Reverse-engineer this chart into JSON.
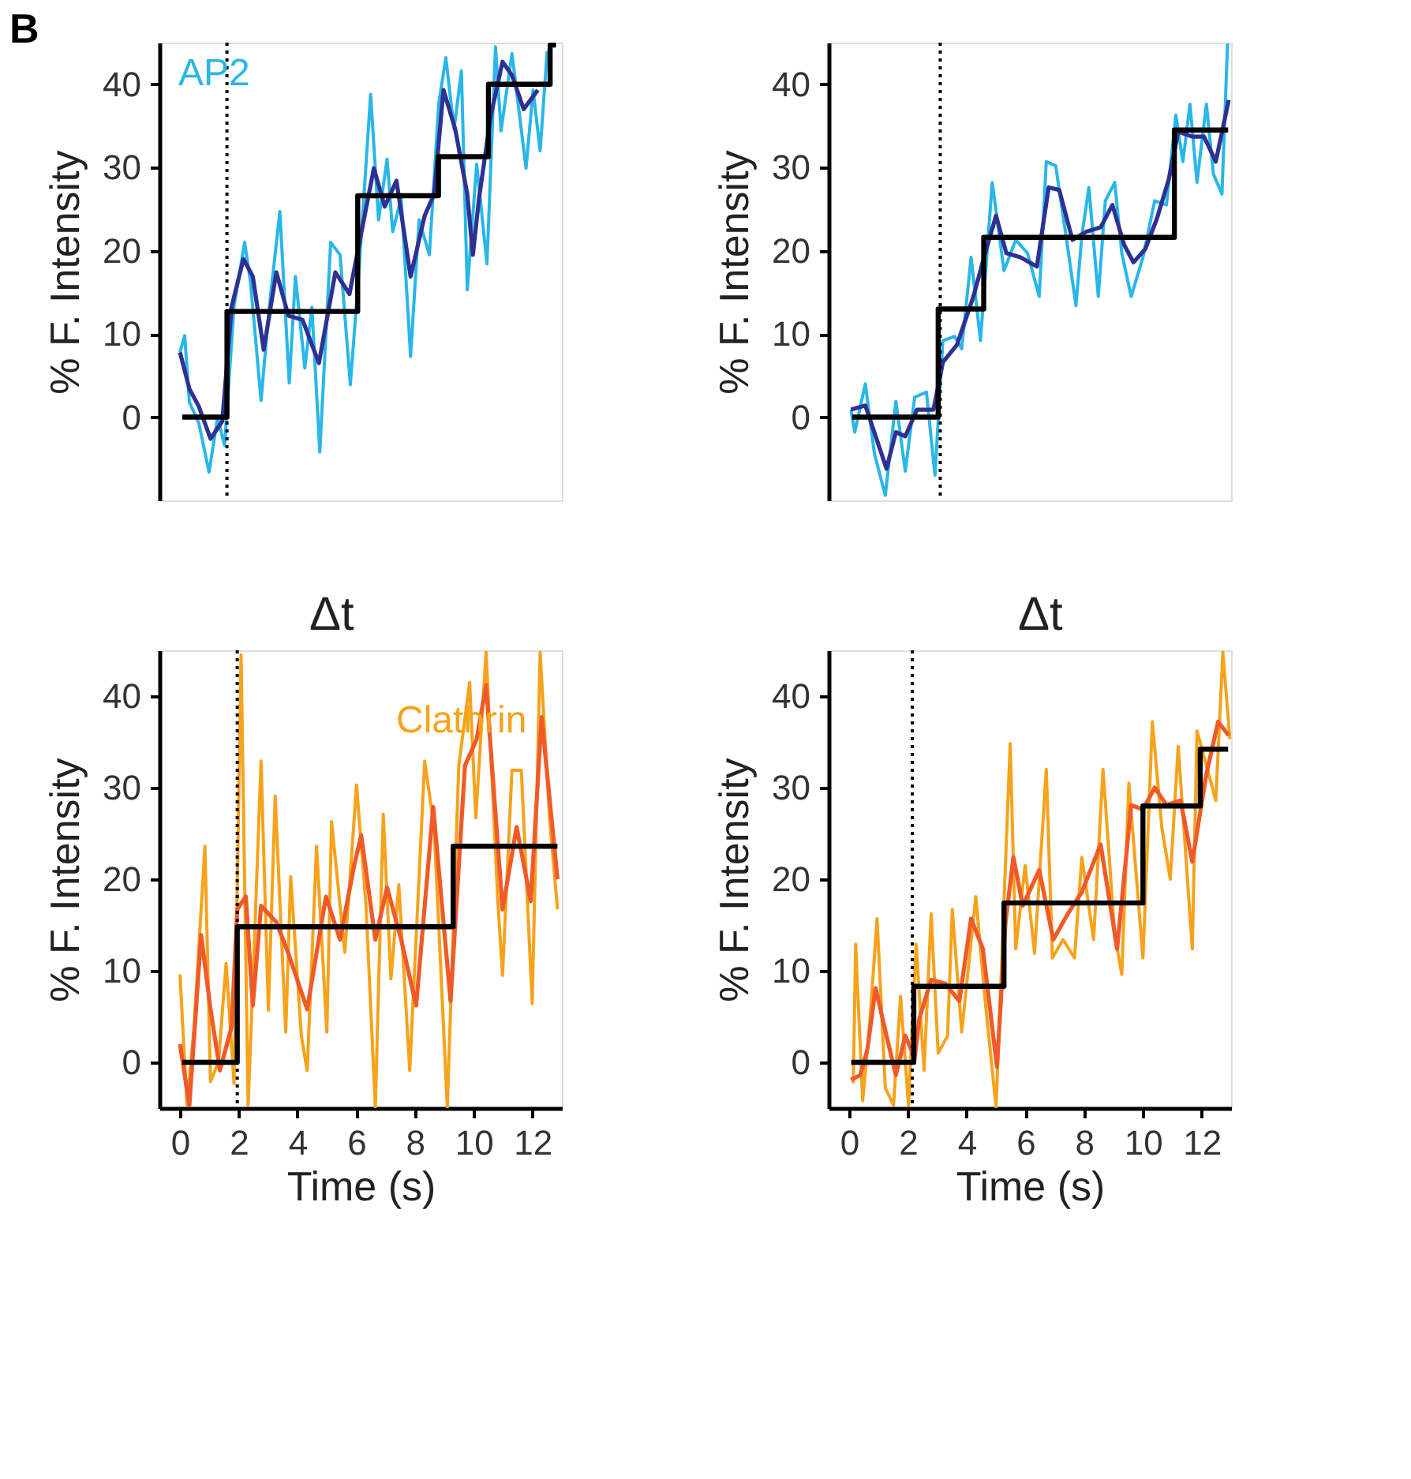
{
  "chart_data": [
    {
      "type": "line",
      "ylabel": "% F. Intensity",
      "xlim": [
        -0.7,
        13
      ],
      "ylim": [
        -10,
        45
      ],
      "yticks": [
        0,
        10,
        20,
        30,
        40
      ],
      "tick_labels": "y",
      "annotations": [
        "B",
        "AP2"
      ],
      "ref_lines": [
        {
          "axis": "x",
          "value": 1.6,
          "color": "#000000",
          "line_style": "dotted"
        }
      ],
      "series": [
        {
          "type": "line",
          "color": "#29b6e8",
          "x": [
            0.0,
            0.16,
            0.32,
            0.64,
            0.99,
            1.28,
            1.52,
            1.84,
            2.2,
            2.4,
            2.76,
            3.04,
            3.4,
            3.72,
            3.93,
            4.25,
            4.49,
            4.76,
            5.13,
            5.45,
            5.8,
            6.09,
            6.49,
            6.76,
            7.05,
            7.24,
            7.53,
            7.85,
            8.14,
            8.49,
            8.81,
            9.05,
            9.33,
            9.58,
            9.78,
            10.1,
            10.45,
            10.74,
            10.93,
            11.3,
            11.78,
            12.02,
            12.26,
            12.5
          ],
          "values": [
            7.8,
            9.8,
            1.8,
            -0.7,
            -6.6,
            -0.1,
            -3.4,
            13.3,
            21.0,
            16.3,
            2.0,
            13.2,
            24.7,
            4.1,
            16.9,
            5.9,
            13.2,
            -4.2,
            21.0,
            19.5,
            3.9,
            17.4,
            38.8,
            23.7,
            31.0,
            22.3,
            26.3,
            7.3,
            23.7,
            19.5,
            37.7,
            43.2,
            34.6,
            41.6,
            15.3,
            30.4,
            18.4,
            44.5,
            34.4,
            43.7,
            29.9,
            39.3,
            32.0,
            44.0
          ]
        },
        {
          "type": "line",
          "color": "#2e3192",
          "x": [
            0.0,
            0.32,
            0.64,
            1.04,
            1.44,
            1.76,
            2.16,
            2.48,
            2.85,
            3.28,
            3.69,
            4.17,
            4.73,
            5.29,
            5.77,
            6.17,
            6.6,
            6.97,
            7.37,
            7.85,
            8.33,
            8.65,
            8.97,
            9.37,
            9.78,
            9.97,
            10.18,
            10.58,
            10.98,
            11.3,
            11.7,
            12.18
          ],
          "values": [
            7.8,
            3.4,
            1.3,
            -2.6,
            -0.5,
            13.3,
            19.0,
            16.9,
            8.1,
            17.4,
            12.2,
            11.7,
            6.5,
            17.4,
            14.8,
            22.1,
            29.9,
            25.3,
            28.4,
            16.9,
            24.2,
            26.8,
            39.3,
            34.6,
            26.8,
            19.5,
            26.3,
            36.2,
            42.7,
            41.1,
            37.0,
            39.3
          ]
        },
        {
          "type": "step",
          "color": "#000000",
          "x": [
            0.08,
            1.6,
            6.05,
            8.8,
            10.5,
            12.6,
            12.8
          ],
          "values": [
            0,
            12.7,
            26.6,
            31.3,
            40,
            44.7,
            44.7
          ]
        }
      ]
    },
    {
      "type": "line",
      "ylabel": "% F. Intensity",
      "xlim": [
        -0.7,
        13
      ],
      "ylim": [
        -10,
        45
      ],
      "yticks": [
        0,
        10,
        20,
        30,
        40
      ],
      "tick_labels": "y",
      "ref_lines": [
        {
          "axis": "x",
          "value": 3.1,
          "color": "#000000",
          "line_style": "dotted"
        }
      ],
      "series": [
        {
          "type": "line",
          "color": "#29b6e8",
          "x": [
            0.06,
            0.19,
            0.55,
            0.86,
            1.23,
            1.59,
            1.91,
            2.23,
            2.63,
            2.92,
            3.19,
            3.59,
            3.83,
            4.15,
            4.47,
            4.87,
            5.27,
            5.67,
            6.07,
            6.47,
            6.71,
            7.03,
            7.36,
            7.72,
            7.92,
            8.16,
            8.48,
            8.72,
            9.04,
            9.28,
            9.6,
            10.0,
            10.4,
            10.8,
            11.12,
            11.36,
            11.6,
            11.84,
            12.16,
            12.4,
            12.69,
            12.88
          ],
          "values": [
            0.9,
            -1.8,
            4.0,
            -4.4,
            -9.4,
            1.9,
            -6.5,
            2.4,
            3.0,
            -7.0,
            9.2,
            9.7,
            8.2,
            19.2,
            9.2,
            28.2,
            17.6,
            21.3,
            19.7,
            14.5,
            30.7,
            30.2,
            22.3,
            13.4,
            21.8,
            27.6,
            14.5,
            26.0,
            28.2,
            19.7,
            14.5,
            19.2,
            26.0,
            25.5,
            36.3,
            30.7,
            37.6,
            28.2,
            37.6,
            29.2,
            26.8,
            44.9
          ]
        },
        {
          "type": "line",
          "color": "#2e3192",
          "x": [
            0.06,
            0.55,
            0.95,
            1.27,
            1.59,
            1.91,
            2.31,
            2.87,
            3.19,
            3.67,
            4.23,
            4.63,
            5.0,
            5.35,
            5.83,
            6.39,
            6.79,
            7.15,
            7.6,
            8.08,
            8.56,
            8.96,
            9.36,
            9.68,
            10.08,
            10.48,
            10.88,
            11.2,
            11.68,
            12.08,
            12.48,
            12.92
          ],
          "values": [
            0.9,
            1.4,
            -2.8,
            -6.2,
            -1.8,
            -2.3,
            0.9,
            0.9,
            6.6,
            8.7,
            14.5,
            19.7,
            24.2,
            19.7,
            19.2,
            18.1,
            27.6,
            27.3,
            21.3,
            22.3,
            22.8,
            25.5,
            20.7,
            18.6,
            20.2,
            23.9,
            28.6,
            34.3,
            33.7,
            33.7,
            30.7,
            38.1
          ]
        },
        {
          "type": "step",
          "color": "#000000",
          "x": [
            0.1,
            3.03,
            4.58,
            11.07,
            12.9
          ],
          "values": [
            0,
            13.0,
            21.6,
            34.5,
            34.5
          ]
        }
      ]
    },
    {
      "type": "line",
      "xlabel": "Time (s)",
      "ylabel": "% F. Intensity",
      "xlim": [
        -0.7,
        13
      ],
      "xticks": [
        0,
        2,
        4,
        6,
        8,
        10,
        12
      ],
      "ylim": [
        -5,
        45
      ],
      "yticks": [
        0,
        10,
        20,
        30,
        40
      ],
      "annotations": [
        "Δt",
        "Clathrin"
      ],
      "ref_lines": [
        {
          "axis": "x",
          "value": 1.95,
          "color": "#000000",
          "line_style": "dotted"
        }
      ],
      "series": [
        {
          "type": "line",
          "color": "#f7a21b",
          "x": [
            0.0,
            0.24,
            0.48,
            0.85,
            1.04,
            1.31,
            1.57,
            1.84,
            2.08,
            2.32,
            2.48,
            2.76,
            3.01,
            3.24,
            3.6,
            3.77,
            4.13,
            4.33,
            4.65,
            5.0,
            5.16,
            5.61,
            6.01,
            6.33,
            6.65,
            6.92,
            7.18,
            7.45,
            7.82,
            8.33,
            8.65,
            9.1,
            9.49,
            9.86,
            10.07,
            10.42,
            10.82,
            10.98,
            11.3,
            11.62,
            11.99,
            12.26,
            12.58,
            12.85
          ],
          "values": [
            9.6,
            -4.7,
            3.9,
            23.6,
            -2.1,
            0.0,
            10.8,
            -2.3,
            44.5,
            -4.7,
            8.6,
            32.9,
            5.7,
            29.1,
            3.3,
            20.3,
            2.9,
            -0.9,
            23.6,
            3.3,
            26.3,
            12.0,
            30.3,
            17.3,
            -4.9,
            27.1,
            9.1,
            19.4,
            -0.9,
            32.9,
            25.7,
            -4.9,
            32.4,
            41.5,
            26.7,
            44.8,
            17.6,
            9.5,
            31.9,
            31.9,
            6.4,
            44.8,
            26.7,
            16.7
          ]
        },
        {
          "type": "line",
          "color": "#f05a28",
          "x": [
            0.0,
            0.32,
            0.72,
            1.04,
            1.36,
            1.76,
            1.95,
            2.24,
            2.48,
            2.76,
            3.28,
            3.69,
            4.33,
            4.97,
            5.45,
            5.93,
            6.17,
            6.65,
            7.05,
            7.53,
            8.04,
            8.62,
            9.21,
            9.7,
            10.1,
            10.42,
            10.98,
            11.46,
            11.94,
            12.31,
            12.85
          ],
          "values": [
            2.0,
            -4.7,
            13.9,
            5.8,
            -0.9,
            3.9,
            16.7,
            18.1,
            6.2,
            17.1,
            15.3,
            11.9,
            5.8,
            18.1,
            13.4,
            21.5,
            24.8,
            13.4,
            19.1,
            13.4,
            6.2,
            27.9,
            6.7,
            32.4,
            35.3,
            41.2,
            16.7,
            25.7,
            17.6,
            37.7,
            20.0
          ]
        },
        {
          "type": "step",
          "color": "#000000",
          "x": [
            0.08,
            1.95,
            9.3,
            12.85
          ],
          "values": [
            0,
            14.8,
            23.6,
            23.6
          ]
        }
      ]
    },
    {
      "type": "line",
      "xlabel": "Time (s)",
      "ylabel": "% F. Intensity",
      "xlim": [
        -0.7,
        13
      ],
      "xticks": [
        0,
        2,
        4,
        6,
        8,
        10,
        12
      ],
      "ylim": [
        -5,
        45
      ],
      "yticks": [
        0,
        10,
        20,
        30,
        40
      ],
      "annotations": [
        "Δt"
      ],
      "ref_lines": [
        {
          "axis": "x",
          "value": 2.15,
          "color": "#000000",
          "line_style": "dotted"
        }
      ],
      "series": [
        {
          "type": "line",
          "color": "#f7a21b",
          "x": [
            0.14,
            0.22,
            0.46,
            0.7,
            0.95,
            1.23,
            1.51,
            1.75,
            2.02,
            2.28,
            2.55,
            2.79,
            3.03,
            3.35,
            3.51,
            3.83,
            4.31,
            4.63,
            5.0,
            5.48,
            5.67,
            5.99,
            6.31,
            6.71,
            6.92,
            7.28,
            7.67,
            7.92,
            8.32,
            8.64,
            9.04,
            9.28,
            9.52,
            10.0,
            10.32,
            10.64,
            10.93,
            11.2,
            11.68,
            11.84,
            12.16,
            12.48,
            12.72,
            12.96
          ],
          "values": [
            -2.3,
            12.9,
            -4.2,
            4.3,
            15.7,
            -2.8,
            -4.7,
            7.2,
            -4.7,
            12.9,
            -0.9,
            16.2,
            1.0,
            2.9,
            16.7,
            3.3,
            18.1,
            6.7,
            -4.9,
            34.8,
            12.4,
            21.5,
            11.9,
            32.0,
            11.4,
            13.4,
            11.4,
            22.4,
            13.4,
            32.0,
            13.9,
            9.6,
            30.5,
            11.4,
            37.2,
            25.7,
            20.0,
            34.5,
            12.4,
            36.2,
            32.4,
            28.6,
            44.8,
            35.3
          ]
        },
        {
          "type": "line",
          "color": "#f05a28",
          "x": [
            0.06,
            0.38,
            0.62,
            0.9,
            1.27,
            1.59,
            1.91,
            2.23,
            2.39,
            2.79,
            3.27,
            3.75,
            4.15,
            4.55,
            5.03,
            5.32,
            5.59,
            5.91,
            6.47,
            6.95,
            7.44,
            7.92,
            8.56,
            9.12,
            9.6,
            10.0,
            10.4,
            10.8,
            11.28,
            11.68,
            12.16,
            12.56,
            12.92
          ],
          "values": [
            -1.9,
            -1.4,
            1.4,
            8.1,
            2.9,
            -1.4,
            2.9,
            0.5,
            4.8,
            9.0,
            8.6,
            6.7,
            15.7,
            12.4,
            -0.5,
            15.2,
            22.4,
            17.1,
            21.0,
            13.4,
            16.2,
            18.6,
            23.8,
            12.4,
            28.1,
            27.6,
            30.0,
            28.1,
            28.6,
            21.9,
            31.5,
            37.2,
            35.7
          ]
        },
        {
          "type": "step",
          "color": "#000000",
          "x": [
            0.07,
            2.2,
            5.27,
            10.0,
            11.95,
            12.9
          ],
          "values": [
            0,
            8.3,
            17.4,
            28.0,
            34.2,
            34.2
          ]
        }
      ]
    }
  ]
}
